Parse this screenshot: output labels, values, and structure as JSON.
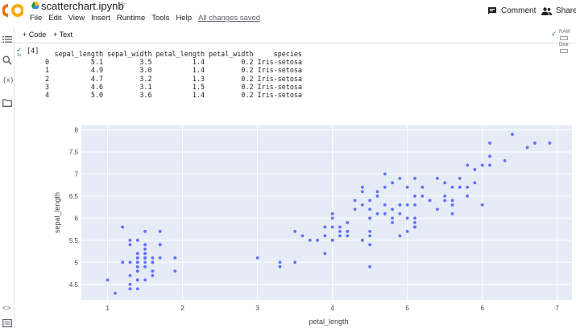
{
  "app": {
    "logo_text": "CO",
    "notebook_title": "scatterchart.ipynb",
    "menu": [
      "File",
      "Edit",
      "View",
      "Insert",
      "Runtime",
      "Tools",
      "Help"
    ],
    "save_status": "All changes saved",
    "comment_label": "Comment",
    "share_label": "Share"
  },
  "toolbar": {
    "add_code": "+ Code",
    "add_text": "+ Text",
    "ram_label": "RAM",
    "disk_label": "Disk"
  },
  "cell": {
    "exec_count": "[4]",
    "exec_time": "1s",
    "dataframe": {
      "columns": [
        "sepal_length",
        "sepal_width",
        "petal_length",
        "petal_width",
        "species"
      ],
      "rows": [
        [
          "0",
          "5.1",
          "3.5",
          "1.4",
          "0.2",
          "Iris-setosa"
        ],
        [
          "1",
          "4.9",
          "3.0",
          "1.4",
          "0.2",
          "Iris-setosa"
        ],
        [
          "2",
          "4.7",
          "3.2",
          "1.3",
          "0.2",
          "Iris-setosa"
        ],
        [
          "3",
          "4.6",
          "3.1",
          "1.5",
          "0.2",
          "Iris-setosa"
        ],
        [
          "4",
          "5.0",
          "3.6",
          "1.4",
          "0.2",
          "Iris-setosa"
        ]
      ]
    }
  },
  "colors": {
    "plot_bg": "#e5ecf6",
    "marker": "#636efa",
    "grid": "#ffffff"
  },
  "chart_data": {
    "type": "scatter",
    "title": "",
    "xlabel": "petal_length",
    "ylabel": "sepal_length",
    "xlim": [
      0.65,
      7.25
    ],
    "ylim": [
      4.15,
      8.1
    ],
    "xticks": [
      1,
      2,
      3,
      4,
      5,
      6,
      7
    ],
    "yticks": [
      4.5,
      5,
      5.5,
      6,
      6.5,
      7,
      7.5,
      8
    ],
    "xtick_labels": [
      "1",
      "2",
      "3",
      "4",
      "5",
      "6",
      "7"
    ],
    "ytick_labels": [
      "4.5",
      "5",
      "5.5",
      "6",
      "6.5",
      "7",
      "7.5",
      "8"
    ],
    "grid": true,
    "legend": "none",
    "points": [
      [
        1.4,
        5.1
      ],
      [
        1.4,
        4.9
      ],
      [
        1.3,
        4.7
      ],
      [
        1.5,
        4.6
      ],
      [
        1.4,
        5.0
      ],
      [
        1.7,
        5.4
      ],
      [
        1.4,
        4.6
      ],
      [
        1.5,
        5.0
      ],
      [
        1.4,
        4.4
      ],
      [
        1.5,
        4.9
      ],
      [
        1.5,
        5.4
      ],
      [
        1.6,
        4.8
      ],
      [
        1.4,
        4.8
      ],
      [
        1.1,
        4.3
      ],
      [
        1.2,
        5.8
      ],
      [
        1.5,
        5.7
      ],
      [
        1.3,
        5.4
      ],
      [
        1.4,
        5.1
      ],
      [
        1.7,
        5.7
      ],
      [
        1.5,
        5.1
      ],
      [
        1.7,
        5.4
      ],
      [
        1.5,
        5.1
      ],
      [
        1.0,
        4.6
      ],
      [
        1.7,
        5.1
      ],
      [
        1.9,
        4.8
      ],
      [
        1.6,
        5.0
      ],
      [
        1.6,
        5.0
      ],
      [
        1.5,
        5.2
      ],
      [
        1.4,
        5.2
      ],
      [
        1.6,
        4.7
      ],
      [
        1.6,
        4.8
      ],
      [
        1.5,
        5.4
      ],
      [
        1.5,
        5.2
      ],
      [
        1.4,
        5.5
      ],
      [
        1.5,
        4.9
      ],
      [
        1.2,
        5.0
      ],
      [
        1.3,
        5.5
      ],
      [
        1.4,
        4.9
      ],
      [
        1.3,
        4.4
      ],
      [
        1.5,
        5.1
      ],
      [
        1.3,
        5.0
      ],
      [
        1.3,
        4.5
      ],
      [
        1.3,
        4.4
      ],
      [
        1.6,
        5.0
      ],
      [
        1.9,
        5.1
      ],
      [
        1.4,
        4.8
      ],
      [
        1.6,
        5.1
      ],
      [
        1.4,
        4.6
      ],
      [
        1.5,
        5.3
      ],
      [
        1.4,
        5.0
      ],
      [
        4.7,
        7.0
      ],
      [
        4.5,
        6.4
      ],
      [
        4.9,
        6.9
      ],
      [
        4.0,
        5.5
      ],
      [
        4.6,
        6.5
      ],
      [
        4.5,
        5.7
      ],
      [
        4.7,
        6.3
      ],
      [
        3.3,
        4.9
      ],
      [
        4.6,
        6.6
      ],
      [
        3.9,
        5.2
      ],
      [
        3.5,
        5.0
      ],
      [
        4.2,
        5.9
      ],
      [
        4.0,
        6.0
      ],
      [
        4.7,
        6.1
      ],
      [
        3.6,
        5.6
      ],
      [
        4.4,
        6.7
      ],
      [
        4.5,
        5.6
      ],
      [
        4.1,
        5.8
      ],
      [
        4.5,
        6.2
      ],
      [
        3.9,
        5.6
      ],
      [
        4.8,
        5.9
      ],
      [
        4.0,
        6.1
      ],
      [
        4.9,
        6.3
      ],
      [
        4.7,
        6.1
      ],
      [
        4.3,
        6.4
      ],
      [
        4.4,
        6.6
      ],
      [
        4.8,
        6.8
      ],
      [
        5.0,
        6.7
      ],
      [
        4.5,
        6.0
      ],
      [
        3.5,
        5.7
      ],
      [
        3.8,
        5.5
      ],
      [
        3.7,
        5.5
      ],
      [
        3.9,
        5.8
      ],
      [
        5.1,
        6.0
      ],
      [
        4.5,
        5.4
      ],
      [
        4.5,
        6.0
      ],
      [
        4.7,
        6.7
      ],
      [
        4.4,
        6.3
      ],
      [
        4.1,
        5.6
      ],
      [
        4.0,
        5.5
      ],
      [
        4.4,
        5.5
      ],
      [
        4.6,
        6.1
      ],
      [
        4.0,
        5.8
      ],
      [
        3.3,
        5.0
      ],
      [
        4.2,
        5.6
      ],
      [
        4.2,
        5.7
      ],
      [
        4.2,
        5.7
      ],
      [
        4.3,
        6.2
      ],
      [
        3.0,
        5.1
      ],
      [
        4.1,
        5.7
      ],
      [
        6.0,
        6.3
      ],
      [
        5.1,
        5.8
      ],
      [
        5.9,
        7.1
      ],
      [
        5.6,
        6.3
      ],
      [
        5.8,
        6.5
      ],
      [
        6.6,
        7.6
      ],
      [
        4.5,
        4.9
      ],
      [
        6.3,
        7.3
      ],
      [
        5.8,
        6.7
      ],
      [
        6.1,
        7.2
      ],
      [
        5.1,
        6.5
      ],
      [
        5.3,
        6.4
      ],
      [
        5.5,
        6.8
      ],
      [
        5.0,
        5.7
      ],
      [
        5.1,
        5.8
      ],
      [
        5.3,
        6.4
      ],
      [
        5.5,
        6.5
      ],
      [
        6.7,
        7.7
      ],
      [
        6.9,
        7.7
      ],
      [
        5.0,
        6.0
      ],
      [
        5.7,
        6.9
      ],
      [
        4.9,
        5.6
      ],
      [
        6.7,
        7.7
      ],
      [
        4.9,
        6.3
      ],
      [
        5.7,
        6.7
      ],
      [
        6.0,
        7.2
      ],
      [
        4.8,
        6.2
      ],
      [
        4.9,
        6.1
      ],
      [
        5.6,
        6.4
      ],
      [
        5.8,
        7.2
      ],
      [
        6.1,
        7.4
      ],
      [
        6.4,
        7.9
      ],
      [
        5.6,
        6.4
      ],
      [
        5.1,
        6.3
      ],
      [
        5.6,
        6.1
      ],
      [
        6.1,
        7.7
      ],
      [
        5.6,
        6.3
      ],
      [
        5.5,
        6.4
      ],
      [
        4.8,
        6.0
      ],
      [
        5.4,
        6.9
      ],
      [
        5.6,
        6.7
      ],
      [
        5.1,
        6.9
      ],
      [
        5.1,
        5.8
      ],
      [
        5.9,
        6.8
      ],
      [
        5.7,
        6.7
      ],
      [
        5.2,
        6.7
      ],
      [
        5.0,
        6.3
      ],
      [
        5.2,
        6.5
      ],
      [
        5.4,
        6.2
      ],
      [
        5.1,
        5.9
      ]
    ]
  }
}
